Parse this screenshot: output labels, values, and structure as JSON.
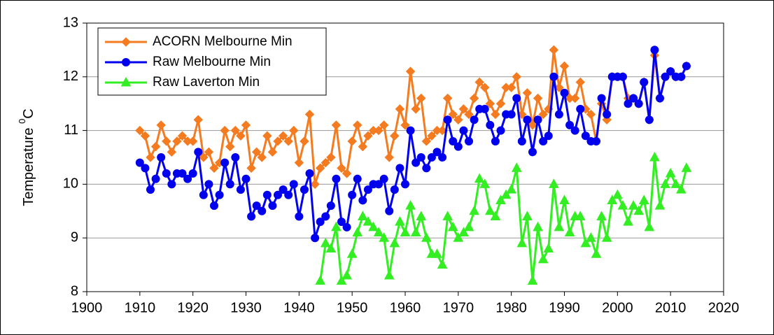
{
  "chart_data": {
    "type": "line",
    "y_label": {
      "text": "Temperature",
      "superscript": "0",
      "unit": "C"
    },
    "x": [
      1910,
      1911,
      1912,
      1913,
      1914,
      1915,
      1916,
      1917,
      1918,
      1919,
      1920,
      1921,
      1922,
      1923,
      1924,
      1925,
      1926,
      1927,
      1928,
      1929,
      1930,
      1931,
      1932,
      1933,
      1934,
      1935,
      1936,
      1937,
      1938,
      1939,
      1940,
      1941,
      1942,
      1943,
      1944,
      1945,
      1946,
      1947,
      1948,
      1949,
      1950,
      1951,
      1952,
      1953,
      1954,
      1955,
      1956,
      1957,
      1958,
      1959,
      1960,
      1961,
      1962,
      1963,
      1964,
      1965,
      1966,
      1967,
      1968,
      1969,
      1970,
      1971,
      1972,
      1973,
      1974,
      1975,
      1976,
      1977,
      1978,
      1979,
      1980,
      1981,
      1982,
      1983,
      1984,
      1985,
      1986,
      1987,
      1988,
      1989,
      1990,
      1991,
      1992,
      1993,
      1994,
      1995,
      1996,
      1997,
      1998,
      1999,
      2000,
      2001,
      2002,
      2003,
      2004,
      2005,
      2006,
      2007,
      2008,
      2009,
      2010,
      2011,
      2012,
      2013
    ],
    "series": [
      {
        "name": "ACORN Melbourne Min",
        "color": "#f47b20",
        "marker": "diamond",
        "values": [
          11.0,
          10.9,
          10.5,
          10.7,
          11.1,
          10.8,
          10.6,
          10.8,
          10.9,
          10.8,
          10.8,
          11.2,
          10.5,
          10.6,
          10.3,
          10.4,
          11.0,
          10.7,
          11.0,
          10.9,
          11.1,
          10.3,
          10.6,
          10.5,
          10.9,
          10.6,
          10.8,
          10.9,
          10.8,
          11.0,
          10.4,
          10.8,
          11.3,
          10.0,
          10.3,
          10.4,
          10.5,
          11.1,
          10.3,
          10.2,
          10.8,
          11.1,
          10.7,
          10.9,
          11.0,
          11.0,
          11.1,
          10.5,
          10.9,
          11.4,
          11.1,
          12.1,
          11.4,
          11.6,
          10.8,
          10.9,
          11.0,
          11.0,
          11.6,
          11.3,
          11.2,
          11.4,
          11.3,
          11.6,
          11.9,
          11.8,
          11.5,
          11.3,
          11.5,
          11.8,
          11.8,
          12.0,
          11.3,
          11.7,
          11.1,
          11.6,
          11.3,
          11.4,
          12.5,
          11.8,
          12.2,
          11.6,
          11.6,
          11.9,
          11.4,
          11.3,
          10.8,
          11.5,
          11.2,
          12.0,
          12.0,
          12.0,
          11.6,
          11.6,
          11.5,
          11.9,
          11.2,
          12.4,
          11.6,
          12.0,
          12.1,
          12.0,
          12.0,
          12.2
        ]
      },
      {
        "name": "Raw Melbourne Min",
        "color": "#0000ee",
        "marker": "circle",
        "values": [
          10.4,
          10.3,
          9.9,
          10.1,
          10.5,
          10.2,
          10.0,
          10.2,
          10.2,
          10.1,
          10.2,
          10.6,
          9.8,
          10.0,
          9.6,
          9.8,
          10.4,
          10.0,
          10.5,
          9.9,
          10.1,
          9.4,
          9.6,
          9.5,
          9.8,
          9.6,
          9.8,
          9.9,
          9.8,
          10.0,
          9.4,
          9.9,
          10.2,
          9.0,
          9.3,
          9.4,
          9.6,
          10.1,
          9.3,
          9.2,
          9.8,
          10.1,
          9.7,
          9.9,
          10.0,
          10.0,
          10.1,
          9.5,
          9.9,
          10.3,
          10.0,
          11.0,
          10.4,
          10.5,
          10.3,
          10.5,
          10.6,
          10.5,
          11.2,
          10.8,
          10.7,
          11.0,
          10.8,
          11.2,
          11.4,
          11.4,
          11.1,
          10.8,
          11.0,
          11.3,
          11.3,
          11.6,
          10.8,
          11.2,
          10.6,
          11.2,
          10.8,
          10.9,
          12.0,
          11.3,
          11.7,
          11.1,
          11.0,
          11.4,
          10.9,
          10.8,
          10.8,
          11.6,
          11.3,
          12.0,
          12.0,
          12.0,
          11.5,
          11.6,
          11.5,
          11.9,
          11.2,
          12.5,
          11.6,
          12.0,
          12.1,
          12.0,
          12.0,
          12.2
        ]
      },
      {
        "name": "Raw Laverton Min",
        "color": "#33ee22",
        "marker": "triangle",
        "values": [
          null,
          null,
          null,
          null,
          null,
          null,
          null,
          null,
          null,
          null,
          null,
          null,
          null,
          null,
          null,
          null,
          null,
          null,
          null,
          null,
          null,
          null,
          null,
          null,
          null,
          null,
          null,
          null,
          null,
          null,
          null,
          null,
          null,
          null,
          8.2,
          8.9,
          8.8,
          9.2,
          8.2,
          8.3,
          8.7,
          9.1,
          9.4,
          9.3,
          9.2,
          9.1,
          9.0,
          8.3,
          8.9,
          9.3,
          9.1,
          9.6,
          9.1,
          9.4,
          9.0,
          8.7,
          8.7,
          8.5,
          9.4,
          9.2,
          9.0,
          9.1,
          9.2,
          9.5,
          10.1,
          10.0,
          9.5,
          9.4,
          9.7,
          9.8,
          9.9,
          10.3,
          8.9,
          9.4,
          8.2,
          9.2,
          8.6,
          8.8,
          10.0,
          9.2,
          9.7,
          9.1,
          9.4,
          9.4,
          8.9,
          9.0,
          8.7,
          9.4,
          9.0,
          9.7,
          9.8,
          9.6,
          9.3,
          9.6,
          9.5,
          9.7,
          9.2,
          10.5,
          9.6,
          10.0,
          10.2,
          10.0,
          9.9,
          10.3
        ]
      }
    ],
    "xlim": [
      1900,
      2020
    ],
    "xticks": [
      1900,
      1910,
      1920,
      1930,
      1940,
      1950,
      1960,
      1970,
      1980,
      1990,
      2000,
      2010,
      2020
    ],
    "ylim": [
      8,
      13
    ],
    "yticks": [
      8,
      9,
      10,
      11,
      12,
      13
    ],
    "grid": true,
    "legend": "upper left"
  }
}
